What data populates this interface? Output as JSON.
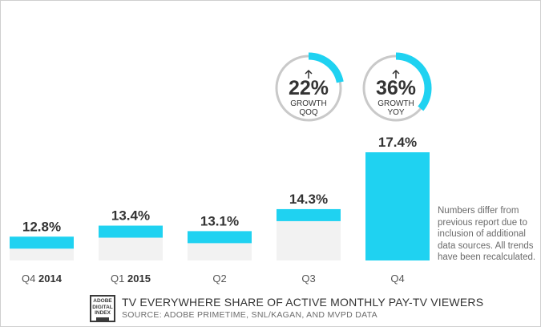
{
  "chart_data": {
    "type": "bar",
    "categories": [
      "Q4 2014",
      "Q1 2015",
      "Q2",
      "Q3",
      "Q4"
    ],
    "category_labels": [
      {
        "plain": "Q4 ",
        "bold": "2014"
      },
      {
        "plain": "Q1 ",
        "bold": "2015"
      },
      {
        "plain": "Q2",
        "bold": ""
      },
      {
        "plain": "Q3",
        "bold": ""
      },
      {
        "plain": "Q4",
        "bold": ""
      }
    ],
    "values": [
      12.8,
      13.4,
      13.1,
      14.3,
      17.4
    ],
    "value_labels": [
      "12.8%",
      "13.4%",
      "13.1%",
      "14.3%",
      "17.4%"
    ],
    "ylim": [
      11.5,
      17.4
    ],
    "title": "",
    "xlabel": "",
    "ylabel": "",
    "grid": false,
    "colors": {
      "accent": "#1fd2f1",
      "bar_background": "#f2f2f2",
      "ring_track": "#c9c9c9"
    },
    "growth_rings": [
      {
        "value": "22%",
        "line1": "GROWTH",
        "line2": "QOQ",
        "fraction": 0.22
      },
      {
        "value": "36%",
        "line1": "GROWTH",
        "line2": "YOY",
        "fraction": 0.36
      }
    ]
  },
  "note": "Numbers differ from previous report due to inclusion of additional data sources. All trends have been recalculated.",
  "footer": {
    "logo_line1": "ADOBE",
    "logo_line2": "DIGITAL",
    "logo_line3": "INDEX",
    "title": "TV EVERYWHERE SHARE OF ACTIVE MONTHLY PAY-TV VIEWERS",
    "source": "SOURCE: ADOBE PRIMETIME, SNL/KAGAN, AND MVPD DATA"
  }
}
